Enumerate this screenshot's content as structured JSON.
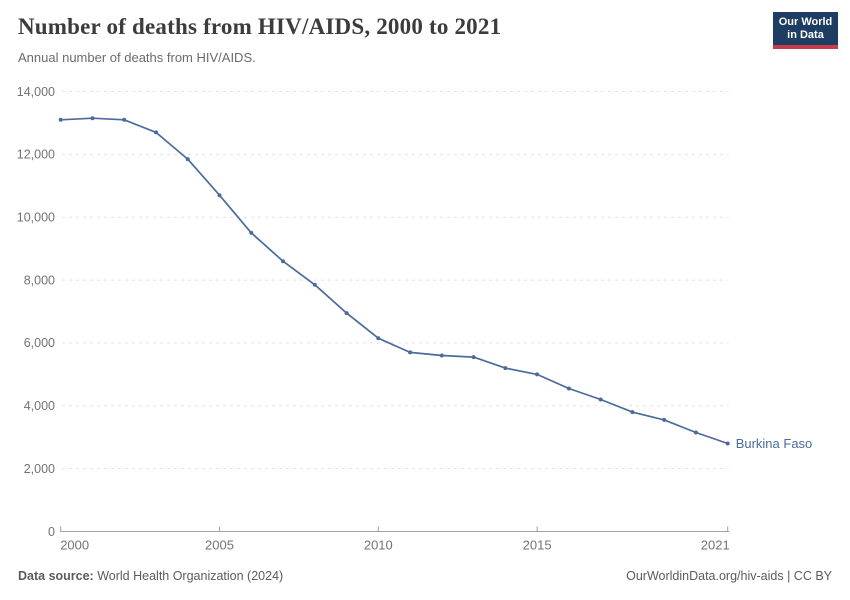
{
  "header": {
    "title": "Number of deaths from HIV/AIDS, 2000 to 2021",
    "subtitle": "Annual number of deaths from HIV/AIDS.",
    "logo": {
      "line1": "Our World",
      "line2": "in Data"
    }
  },
  "chart_data": {
    "type": "line",
    "title": "Number of deaths from HIV/AIDS, 2000 to 2021",
    "subtitle": "Annual number of deaths from HIV/AIDS.",
    "xlabel": "",
    "ylabel": "",
    "xlim": [
      2000,
      2021
    ],
    "ylim": [
      0,
      14000
    ],
    "xticks": [
      2000,
      2005,
      2010,
      2015,
      2021
    ],
    "yticks": [
      0,
      2000,
      4000,
      6000,
      8000,
      10000,
      12000,
      14000
    ],
    "grid": "horizontal-dashed",
    "legend_position": "end-of-line-label",
    "series": [
      {
        "name": "Burkina Faso",
        "color": "#4c6a9c",
        "x": [
          2000,
          2001,
          2002,
          2003,
          2004,
          2005,
          2006,
          2007,
          2008,
          2009,
          2010,
          2011,
          2012,
          2013,
          2014,
          2015,
          2016,
          2017,
          2018,
          2019,
          2020,
          2021
        ],
        "values": [
          13100,
          13150,
          13100,
          12700,
          11850,
          10700,
          9500,
          8600,
          7850,
          6950,
          6150,
          5700,
          5600,
          5550,
          5200,
          5000,
          4550,
          4200,
          3800,
          3550,
          3150,
          2800
        ]
      }
    ]
  },
  "footer": {
    "source_label": "Data source:",
    "source_value": "World Health Organization (2024)",
    "credit": "OurWorldinData.org/hiv-aids | CC BY"
  },
  "colors": {
    "accent_line": "#4c6a9c",
    "logo_bg": "#1d3d63",
    "logo_stripe": "#c93a4a",
    "grid": "#e2e2e2",
    "axis": "#a1a1a1",
    "tick_text": "#737373",
    "title_text": "#3d3b3b",
    "subtitle_text": "#6b6b6b",
    "footer_text": "#5b5b5b"
  }
}
